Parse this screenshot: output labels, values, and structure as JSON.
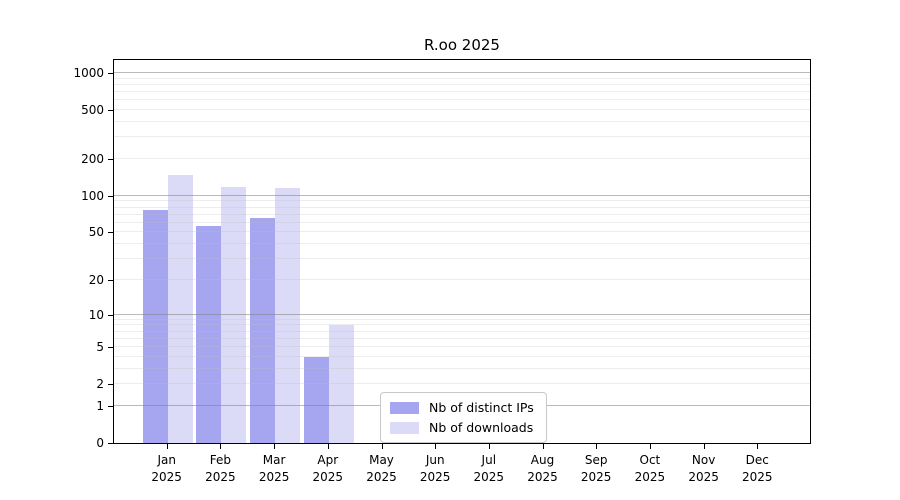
{
  "title": "R.oo 2025",
  "chart_data": {
    "type": "bar",
    "title": "R.oo 2025",
    "scale": "log10(1+x)",
    "categories": [
      "Jan",
      "Feb",
      "Mar",
      "Apr",
      "May",
      "Jun",
      "Jul",
      "Aug",
      "Sep",
      "Oct",
      "Nov",
      "Dec"
    ],
    "year_label": "2025",
    "series": [
      {
        "name": "Nb of distinct IPs",
        "color": "#a5a5f0",
        "values": [
          76,
          57,
          66,
          4,
          0,
          0,
          0,
          0,
          0,
          0,
          0,
          0
        ]
      },
      {
        "name": "Nb of downloads",
        "color": "#dbdbf8",
        "values": [
          148,
          117,
          115,
          8,
          0,
          0,
          0,
          0,
          0,
          0,
          0,
          0
        ]
      }
    ],
    "yticks": [
      0,
      1,
      2,
      5,
      10,
      20,
      50,
      100,
      200,
      500,
      1000
    ],
    "ylim": [
      0,
      1300
    ],
    "grid": "horizontal log gridlines, major at powers of 10",
    "legend_position": "inside bottom-center"
  },
  "legend": {
    "items": [
      {
        "label": "Nb of distinct IPs",
        "color": "#a5a5f0"
      },
      {
        "label": "Nb of downloads",
        "color": "#dbdbf8"
      }
    ]
  }
}
